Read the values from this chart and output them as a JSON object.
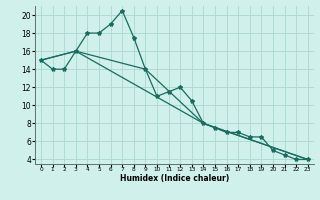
{
  "xlabel": "Humidex (Indice chaleur)",
  "bg_color": "#cff0eb",
  "grid_color": "#aad8d0",
  "line_color": "#1a6b60",
  "xlim": [
    -0.5,
    23.5
  ],
  "ylim": [
    3.5,
    21
  ],
  "xticks": [
    0,
    1,
    2,
    3,
    4,
    5,
    6,
    7,
    8,
    9,
    10,
    11,
    12,
    13,
    14,
    15,
    16,
    17,
    18,
    19,
    20,
    21,
    22,
    23
  ],
  "yticks": [
    4,
    6,
    8,
    10,
    12,
    14,
    16,
    18,
    20
  ],
  "series1_x": [
    0,
    1,
    2,
    3,
    4,
    5,
    6,
    7,
    8,
    9,
    10,
    11,
    12,
    13,
    14,
    15,
    16,
    17,
    18,
    19,
    20,
    21,
    22,
    23
  ],
  "series1_y": [
    15.0,
    14.0,
    14.0,
    16.0,
    18.0,
    18.0,
    19.0,
    20.5,
    17.5,
    14.0,
    11.0,
    11.5,
    12.0,
    10.5,
    8.0,
    7.5,
    7.0,
    7.0,
    6.5,
    6.5,
    5.0,
    4.5,
    4.0,
    4.0
  ],
  "series2_x": [
    0,
    3,
    9,
    14,
    23
  ],
  "series2_y": [
    15.0,
    16.0,
    14.0,
    8.0,
    4.0
  ],
  "series3_x": [
    0,
    3,
    14,
    23
  ],
  "series3_y": [
    15.0,
    16.0,
    8.0,
    4.0
  ]
}
